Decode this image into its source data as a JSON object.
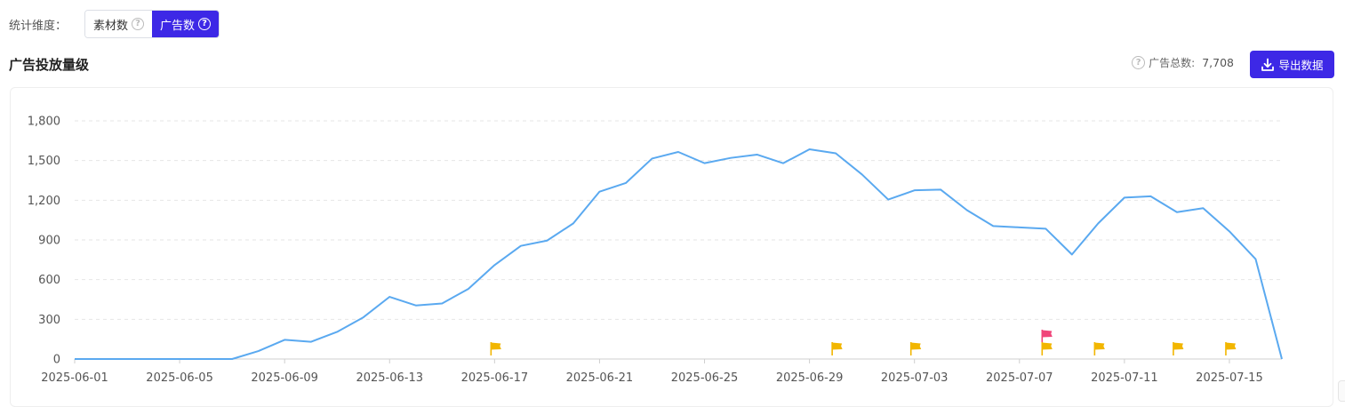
{
  "dimension": {
    "label": "统计维度：",
    "options": [
      "素材数",
      "广告数"
    ],
    "selected": "广告数"
  },
  "header": {
    "title": "广告投放量级",
    "total_label": "广告总数:",
    "total_value": "7,708",
    "export_label": "导出数据"
  },
  "colors": {
    "accent": "#3d28e6",
    "line": "#5aa9f0",
    "flag_yellow": "#f2b600",
    "flag_pink": "#f0457a"
  },
  "chart_data": {
    "type": "line",
    "title": "",
    "xlabel": "",
    "ylabel": "",
    "ylim": [
      0,
      1800
    ],
    "yticks": [
      0,
      300,
      600,
      900,
      1200,
      1500,
      1800
    ],
    "ytick_labels": [
      "0",
      "300",
      "600",
      "900",
      "1,200",
      "1,500",
      "1,800"
    ],
    "xtick_labels": [
      "2025-06-01",
      "2025-06-05",
      "2025-06-09",
      "2025-06-13",
      "2025-06-17",
      "2025-06-21",
      "2025-06-25",
      "2025-06-29",
      "2025-07-03",
      "2025-07-07",
      "2025-07-11",
      "2025-07-15"
    ],
    "grid": true,
    "x": [
      "2025-06-01",
      "2025-06-02",
      "2025-06-03",
      "2025-06-04",
      "2025-06-05",
      "2025-06-06",
      "2025-06-07",
      "2025-06-08",
      "2025-06-09",
      "2025-06-10",
      "2025-06-11",
      "2025-06-12",
      "2025-06-13",
      "2025-06-14",
      "2025-06-15",
      "2025-06-16",
      "2025-06-17",
      "2025-06-18",
      "2025-06-19",
      "2025-06-20",
      "2025-06-21",
      "2025-06-22",
      "2025-06-23",
      "2025-06-24",
      "2025-06-25",
      "2025-06-26",
      "2025-06-27",
      "2025-06-28",
      "2025-06-29",
      "2025-06-30",
      "2025-07-01",
      "2025-07-02",
      "2025-07-03",
      "2025-07-04",
      "2025-07-05",
      "2025-07-06",
      "2025-07-07",
      "2025-07-08",
      "2025-07-09",
      "2025-07-10",
      "2025-07-11",
      "2025-07-12",
      "2025-07-13",
      "2025-07-14",
      "2025-07-15",
      "2025-07-16",
      "2025-07-17"
    ],
    "series": [
      {
        "values": [
          0,
          0,
          0,
          0,
          0,
          0,
          0,
          60,
          145,
          130,
          205,
          315,
          470,
          405,
          420,
          530,
          710,
          855,
          895,
          1025,
          1265,
          1330,
          1515,
          1565,
          1480,
          1520,
          1545,
          1480,
          1585,
          1555,
          1395,
          1205,
          1275,
          1280,
          1125,
          1005,
          995,
          985,
          790,
          1025,
          1220,
          1230,
          1110,
          1140,
          965,
          755,
          0
        ]
      }
    ],
    "markers": [
      {
        "date": "2025-06-17",
        "color": "yellow"
      },
      {
        "date": "2025-06-30",
        "color": "yellow"
      },
      {
        "date": "2025-07-03",
        "color": "yellow"
      },
      {
        "date": "2025-07-08",
        "color": "pink"
      },
      {
        "date": "2025-07-08",
        "color": "yellow"
      },
      {
        "date": "2025-07-10",
        "color": "yellow"
      },
      {
        "date": "2025-07-13",
        "color": "yellow"
      },
      {
        "date": "2025-07-15",
        "color": "yellow"
      }
    ]
  }
}
